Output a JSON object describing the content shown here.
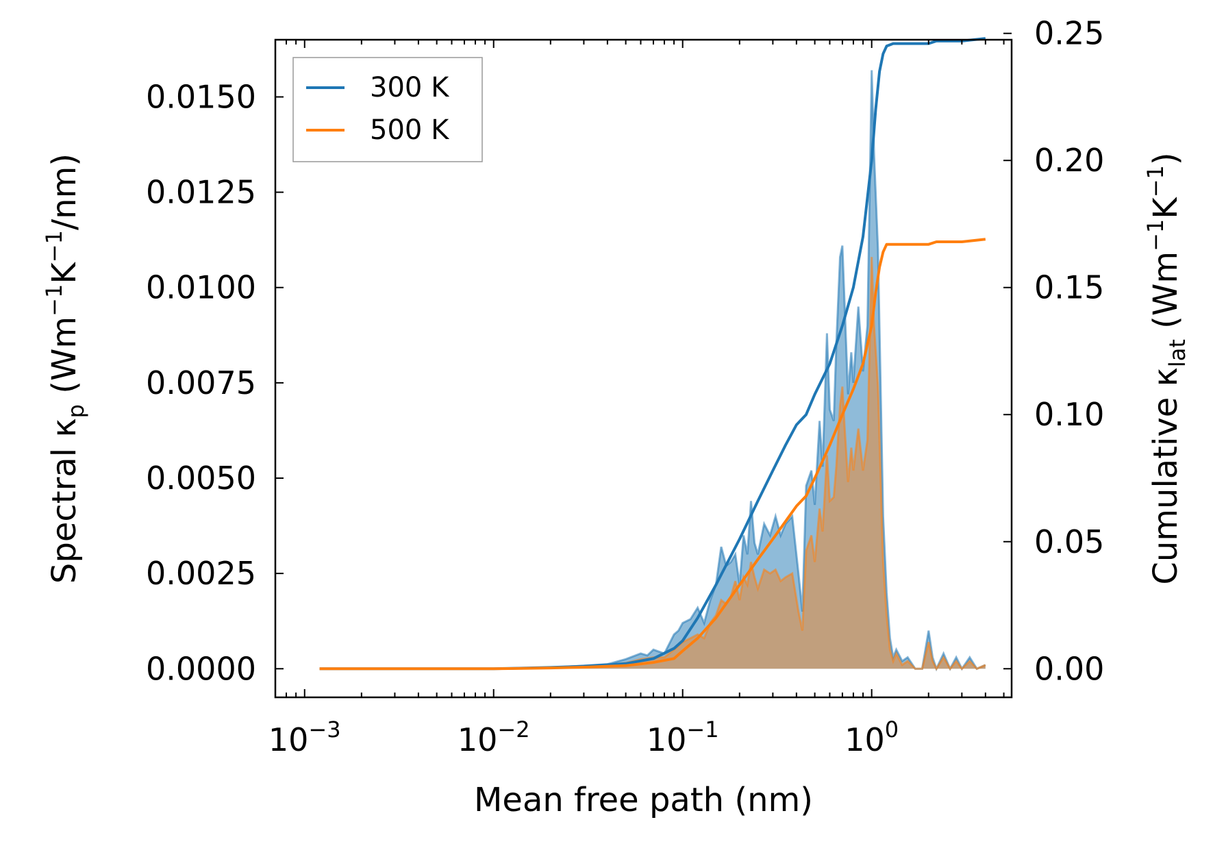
{
  "chart_data": {
    "type": "line",
    "xscale": "log",
    "xlim": [
      0.0007,
      5.5
    ],
    "ylim_left": [
      -0.00075,
      0.0165
    ],
    "ylim_right": [
      -0.01125,
      0.2475
    ],
    "xlabel": "Mean free path (nm)",
    "ylabel_left": {
      "base": "Spectral κ",
      "sub": "p",
      "unit_open": " (Wm",
      "sup1": "−1",
      "mid": "K",
      "sup2": "−1",
      "unit_close": "/nm)"
    },
    "ylabel_right": {
      "base": "Cumulative κ",
      "sub": "lat",
      "unit_open": " (Wm",
      "sup1": "−1",
      "mid": "K",
      "sup2": "−1",
      "unit_close": ")"
    },
    "xticks": [
      {
        "value": 0.001,
        "base": "10",
        "exp": "−3"
      },
      {
        "value": 0.01,
        "base": "10",
        "exp": "−2"
      },
      {
        "value": 0.1,
        "base": "10",
        "exp": "−1"
      },
      {
        "value": 1,
        "base": "10",
        "exp": "0"
      }
    ],
    "yticks_left": [
      {
        "value": 0,
        "label": "0.0000"
      },
      {
        "value": 0.0025,
        "label": "0.0025"
      },
      {
        "value": 0.005,
        "label": "0.0050"
      },
      {
        "value": 0.0075,
        "label": "0.0075"
      },
      {
        "value": 0.01,
        "label": "0.0100"
      },
      {
        "value": 0.0125,
        "label": "0.0125"
      },
      {
        "value": 0.015,
        "label": "0.0150"
      }
    ],
    "yticks_right": [
      {
        "value": 0,
        "label": "0.00"
      },
      {
        "value": 0.05,
        "label": "0.05"
      },
      {
        "value": 0.1,
        "label": "0.10"
      },
      {
        "value": 0.15,
        "label": "0.15"
      },
      {
        "value": 0.2,
        "label": "0.20"
      },
      {
        "value": 0.25,
        "label": "0.25"
      }
    ],
    "legend": {
      "position": "upper-left",
      "entries": [
        "300 K",
        "500 K"
      ]
    },
    "series": [
      {
        "name": "300 K",
        "color": "#1f77b4",
        "fill_color": "#1f77b4",
        "spectral": {
          "x": [
            0.0012,
            0.003,
            0.01,
            0.02,
            0.03,
            0.04,
            0.05,
            0.06,
            0.065,
            0.07,
            0.08,
            0.09,
            0.095,
            0.1,
            0.11,
            0.12,
            0.13,
            0.14,
            0.15,
            0.16,
            0.17,
            0.18,
            0.19,
            0.2,
            0.21,
            0.22,
            0.23,
            0.24,
            0.25,
            0.27,
            0.29,
            0.31,
            0.33,
            0.35,
            0.38,
            0.41,
            0.43,
            0.45,
            0.48,
            0.5,
            0.53,
            0.55,
            0.58,
            0.6,
            0.63,
            0.65,
            0.68,
            0.7,
            0.72,
            0.75,
            0.78,
            0.8,
            0.85,
            0.9,
            0.95,
            1.0,
            1.03,
            1.08,
            1.15,
            1.2,
            1.25,
            1.3,
            1.35,
            1.45,
            1.55,
            1.7,
            1.85,
            2.0,
            2.1,
            2.2,
            2.4,
            2.6,
            2.8,
            3.0,
            3.3,
            3.6,
            4.0
          ],
          "y": [
            0.0,
            0.0,
            0.0,
            3e-05,
            8e-05,
            0.00012,
            0.00025,
            0.0004,
            0.00035,
            0.0005,
            0.0004,
            0.0009,
            0.001,
            0.0012,
            0.0013,
            0.0016,
            0.0012,
            0.0018,
            0.0022,
            0.0032,
            0.0027,
            0.0028,
            0.003,
            0.0022,
            0.0035,
            0.003,
            0.0044,
            0.0033,
            0.003,
            0.0038,
            0.0035,
            0.004,
            0.0035,
            0.0038,
            0.004,
            0.0025,
            0.0015,
            0.0048,
            0.0052,
            0.0043,
            0.0065,
            0.0053,
            0.0088,
            0.0068,
            0.0065,
            0.0085,
            0.0108,
            0.0111,
            0.0095,
            0.0072,
            0.0083,
            0.0075,
            0.0095,
            0.0078,
            0.009,
            0.0157,
            0.0135,
            0.011,
            0.004,
            0.002,
            0.0008,
            0.0003,
            0.0005,
            0.0002,
            0.0003,
            0.0,
            0.0,
            0.001,
            0.0003,
            0.0,
            0.0004,
            0.0,
            0.0003,
            0.0,
            0.0003,
            0.0,
            0.0001
          ]
        },
        "cumulative": {
          "x": [
            0.0012,
            0.005,
            0.01,
            0.02,
            0.03,
            0.05,
            0.07,
            0.09,
            0.1,
            0.12,
            0.15,
            0.2,
            0.25,
            0.3,
            0.35,
            0.4,
            0.45,
            0.5,
            0.6,
            0.7,
            0.8,
            0.9,
            1.0,
            1.05,
            1.1,
            1.15,
            1.2,
            1.3,
            1.5,
            2.0,
            2.2,
            3.0,
            4.0
          ],
          "y": [
            0.0,
            0.0,
            0.0,
            0.0005,
            0.001,
            0.002,
            0.004,
            0.008,
            0.011,
            0.02,
            0.033,
            0.051,
            0.066,
            0.078,
            0.088,
            0.096,
            0.1,
            0.108,
            0.12,
            0.135,
            0.15,
            0.17,
            0.2,
            0.22,
            0.235,
            0.242,
            0.245,
            0.246,
            0.246,
            0.246,
            0.247,
            0.247,
            0.248
          ]
        }
      },
      {
        "name": "500 K",
        "color": "#ff7f0e",
        "fill_color": "#ff7f0e",
        "spectral": {
          "x": [
            0.0012,
            0.003,
            0.01,
            0.02,
            0.03,
            0.04,
            0.05,
            0.06,
            0.07,
            0.08,
            0.09,
            0.1,
            0.11,
            0.12,
            0.13,
            0.14,
            0.15,
            0.16,
            0.17,
            0.18,
            0.19,
            0.2,
            0.21,
            0.22,
            0.23,
            0.24,
            0.25,
            0.27,
            0.29,
            0.31,
            0.33,
            0.35,
            0.38,
            0.41,
            0.43,
            0.45,
            0.48,
            0.5,
            0.53,
            0.55,
            0.58,
            0.6,
            0.63,
            0.65,
            0.68,
            0.7,
            0.72,
            0.75,
            0.78,
            0.8,
            0.85,
            0.9,
            0.95,
            1.0,
            1.03,
            1.08,
            1.15,
            1.2,
            1.25,
            1.3,
            1.35,
            1.45,
            1.55,
            1.7,
            1.85,
            2.0,
            2.1,
            2.2,
            2.4,
            2.6,
            2.8,
            3.0,
            3.3,
            3.6,
            4.0
          ],
          "y": [
            0.0,
            0.0,
            0.0,
            2e-05,
            5e-05,
            0.0001,
            0.00015,
            0.00025,
            0.0003,
            0.0003,
            0.0005,
            0.0007,
            0.0008,
            0.0009,
            0.0008,
            0.0012,
            0.0014,
            0.0018,
            0.0017,
            0.0019,
            0.0023,
            0.0018,
            0.0024,
            0.0022,
            0.0028,
            0.0024,
            0.0021,
            0.0026,
            0.0025,
            0.0026,
            0.0023,
            0.0024,
            0.0025,
            0.0015,
            0.001,
            0.0031,
            0.0035,
            0.0028,
            0.0042,
            0.0036,
            0.0056,
            0.0044,
            0.0045,
            0.0053,
            0.0069,
            0.0074,
            0.0063,
            0.0049,
            0.0058,
            0.0052,
            0.0063,
            0.0052,
            0.006,
            0.0108,
            0.009,
            0.0074,
            0.0028,
            0.0014,
            0.0005,
            0.0002,
            0.0004,
            0.0001,
            0.0002,
            0.0,
            0.0,
            0.0007,
            0.0002,
            0.0,
            0.0003,
            0.0,
            0.0002,
            0.0,
            0.0002,
            0.0,
            0.0001
          ]
        },
        "cumulative": {
          "x": [
            0.0012,
            0.005,
            0.01,
            0.02,
            0.03,
            0.05,
            0.07,
            0.09,
            0.1,
            0.12,
            0.15,
            0.2,
            0.25,
            0.3,
            0.35,
            0.4,
            0.45,
            0.5,
            0.6,
            0.7,
            0.8,
            0.9,
            1.0,
            1.05,
            1.1,
            1.15,
            1.2,
            1.3,
            1.5,
            2.0,
            2.2,
            3.0,
            4.0
          ],
          "y": [
            0.0,
            0.0,
            0.0,
            0.0003,
            0.0006,
            0.0012,
            0.0025,
            0.004,
            0.007,
            0.012,
            0.02,
            0.033,
            0.043,
            0.051,
            0.058,
            0.064,
            0.068,
            0.075,
            0.088,
            0.1,
            0.11,
            0.12,
            0.135,
            0.148,
            0.158,
            0.164,
            0.167,
            0.167,
            0.167,
            0.167,
            0.168,
            0.168,
            0.169
          ]
        }
      }
    ]
  }
}
